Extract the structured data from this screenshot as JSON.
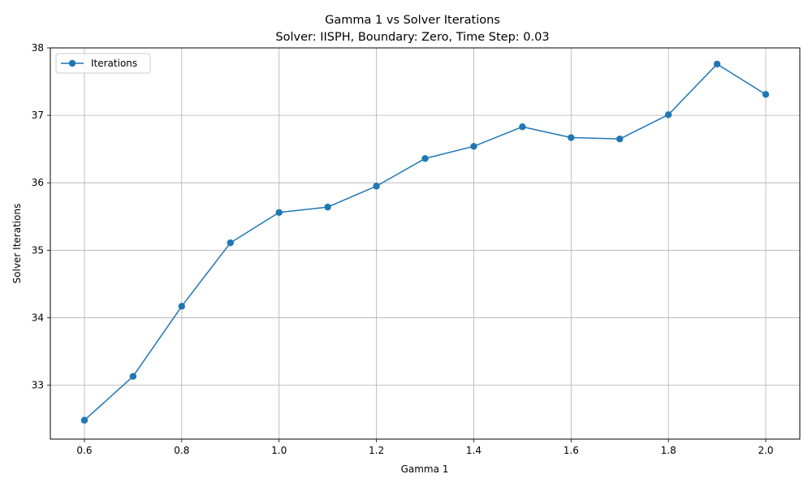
{
  "chart_data": {
    "type": "line",
    "title": "Gamma 1 vs Solver Iterations",
    "subtitle": "Solver: IISPH, Boundary: Zero, Time Step: 0.03",
    "xlabel": "Gamma 1",
    "ylabel": "Solver Iterations",
    "xlim": [
      0.53,
      2.07
    ],
    "ylim": [
      32.2,
      38.0
    ],
    "xticks": [
      0.6,
      0.8,
      1.0,
      1.2,
      1.4,
      1.6,
      1.8,
      2.0
    ],
    "xtick_labels": [
      "0.6",
      "0.8",
      "1.0",
      "1.2",
      "1.4",
      "1.6",
      "1.8",
      "2.0"
    ],
    "yticks": [
      33,
      34,
      35,
      36,
      37,
      38
    ],
    "ytick_labels": [
      "33",
      "34",
      "35",
      "36",
      "37",
      "38"
    ],
    "grid": true,
    "legend_position": "top-left",
    "series": [
      {
        "name": "Iterations",
        "color": "#1f77b4",
        "marker": "circle",
        "x": [
          0.6,
          0.7,
          0.8,
          0.9,
          1.0,
          1.1,
          1.2,
          1.3,
          1.4,
          1.5,
          1.6,
          1.7,
          1.8,
          1.9,
          2.0
        ],
        "y": [
          32.48,
          33.13,
          34.17,
          35.11,
          35.56,
          35.64,
          35.95,
          36.36,
          36.54,
          36.83,
          36.67,
          36.65,
          37.01,
          37.76,
          37.31
        ]
      }
    ]
  }
}
